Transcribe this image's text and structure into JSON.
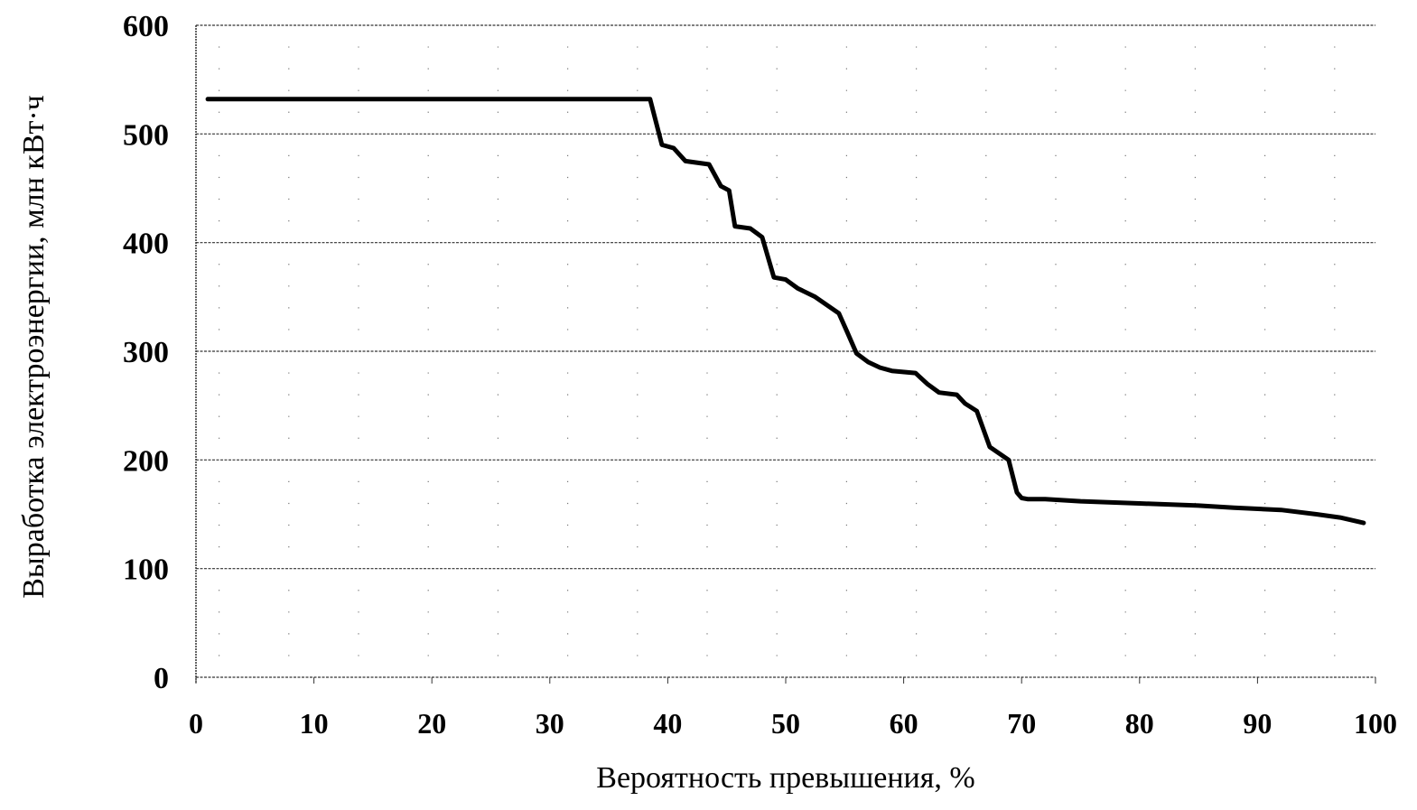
{
  "chart_data": {
    "type": "line",
    "title": "",
    "xlabel": "Вероятность превышения, %",
    "ylabel": "Выработка электроэнергии, млн кВт·ч",
    "xlim": [
      0,
      100
    ],
    "ylim": [
      0,
      600
    ],
    "x_ticks": [
      0,
      10,
      20,
      30,
      40,
      50,
      60,
      70,
      80,
      90,
      100
    ],
    "y_ticks": [
      0,
      100,
      200,
      300,
      400,
      500,
      600
    ],
    "grid": {
      "horizontal": true,
      "vertical": false,
      "style": "dotted"
    },
    "legend": null,
    "series": [
      {
        "name": "Выработка электроэнергии",
        "color": "#000000",
        "x": [
          1,
          10,
          20,
          30,
          38.5,
          39.5,
          40.5,
          41.5,
          43.5,
          44.5,
          45.2,
          45.7,
          47,
          48,
          49,
          50,
          51,
          52.5,
          54.5,
          55.2,
          56,
          57,
          58,
          59,
          61,
          62,
          63,
          64.5,
          65.2,
          66.2,
          67.3,
          68.9,
          69.6,
          70,
          70.5,
          72,
          75,
          80,
          85,
          88,
          92,
          95,
          97,
          99
        ],
        "y": [
          532,
          532,
          532,
          532,
          532,
          490,
          487,
          475,
          472,
          452,
          448,
          415,
          413,
          405,
          368,
          366,
          358,
          350,
          335,
          318,
          298,
          290,
          285,
          282,
          280,
          270,
          262,
          260,
          252,
          245,
          212,
          200,
          170,
          165,
          164,
          164,
          162,
          160,
          158,
          156,
          154,
          150,
          147,
          142
        ]
      }
    ]
  },
  "plot": {
    "x_title": "Вероятность превышения, %",
    "y_title": "Выработка электроэнергии, млн кВт·ч"
  }
}
